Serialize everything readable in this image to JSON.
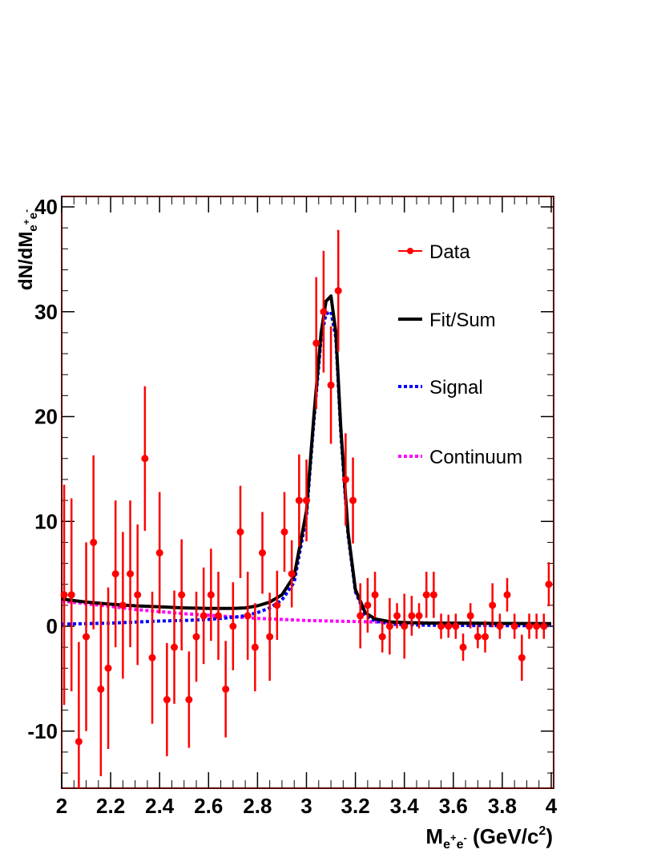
{
  "chart_data": {
    "type": "scatter",
    "xlim": [
      2.0,
      4.0
    ],
    "ylim": [
      -15.5,
      41
    ],
    "x_ticks": [
      2,
      2.2,
      2.4,
      2.6,
      2.8,
      3,
      3.2,
      3.4,
      3.6,
      3.8,
      4
    ],
    "x_tick_labels": [
      "2",
      "2.2",
      "2.4",
      "2.6",
      "2.8",
      "3",
      "3.2",
      "3.4",
      "3.6",
      "3.8",
      "4"
    ],
    "y_ticks": [
      -10,
      0,
      10,
      20,
      30,
      40
    ],
    "y_tick_labels": [
      "-10",
      "0",
      "10",
      "20",
      "30",
      "40"
    ],
    "xlabel": {
      "main": "M",
      "sub_e1": "e",
      "sup_plus": "+",
      "sub_e2": "e",
      "sup_minus": "-",
      "unit_open": " (GeV/c",
      "unit_sup": "2",
      "unit_close": ")"
    },
    "ylabel": {
      "main": "dN/dM",
      "sub_e1": "e",
      "sup_plus": "+",
      "sub_e2": "e",
      "sup_minus": "-"
    },
    "legend_position": "top-right",
    "legend": [
      {
        "label": "Data",
        "style": "marker",
        "color": "#ff0000"
      },
      {
        "label": "Fit/Sum",
        "style": "solid",
        "color": "#000000"
      },
      {
        "label": "Signal",
        "style": "dotted",
        "color": "#0000ff"
      },
      {
        "label": "Continuum",
        "style": "dotted",
        "color": "#ff00ff"
      }
    ],
    "series": [
      {
        "name": "Data",
        "kind": "points",
        "color": "#ff0000",
        "points": [
          {
            "x": 2.01,
            "y": 3,
            "err": 10.5
          },
          {
            "x": 2.04,
            "y": 3,
            "err": 9.2
          },
          {
            "x": 2.07,
            "y": -11,
            "err": 9.5
          },
          {
            "x": 2.1,
            "y": -1,
            "err": 9
          },
          {
            "x": 2.13,
            "y": 8,
            "err": 8.3
          },
          {
            "x": 2.16,
            "y": -6,
            "err": 8.3
          },
          {
            "x": 2.19,
            "y": -4,
            "err": 7.7
          },
          {
            "x": 2.22,
            "y": 5,
            "err": 7
          },
          {
            "x": 2.25,
            "y": 2,
            "err": 7
          },
          {
            "x": 2.28,
            "y": 5,
            "err": 7
          },
          {
            "x": 2.31,
            "y": 3,
            "err": 6.7
          },
          {
            "x": 2.34,
            "y": 16,
            "err": 6.9
          },
          {
            "x": 2.37,
            "y": -3,
            "err": 6.3
          },
          {
            "x": 2.4,
            "y": 7,
            "err": 5.8
          },
          {
            "x": 2.43,
            "y": -7,
            "err": 5.4
          },
          {
            "x": 2.46,
            "y": -2,
            "err": 5.4
          },
          {
            "x": 2.49,
            "y": 3,
            "err": 5.3
          },
          {
            "x": 2.52,
            "y": -7,
            "err": 4.6
          },
          {
            "x": 2.55,
            "y": -1,
            "err": 4.3
          },
          {
            "x": 2.58,
            "y": 1,
            "err": 4.6
          },
          {
            "x": 2.61,
            "y": 3,
            "err": 4.4
          },
          {
            "x": 2.64,
            "y": 1,
            "err": 4.2
          },
          {
            "x": 2.67,
            "y": -6,
            "err": 4.6
          },
          {
            "x": 2.7,
            "y": 0,
            "err": 4.2
          },
          {
            "x": 2.73,
            "y": 9,
            "err": 4.4
          },
          {
            "x": 2.76,
            "y": 1,
            "err": 4.2
          },
          {
            "x": 2.79,
            "y": -2,
            "err": 4.2
          },
          {
            "x": 2.82,
            "y": 7,
            "err": 3.9
          },
          {
            "x": 2.85,
            "y": -1,
            "err": 4.2
          },
          {
            "x": 2.88,
            "y": 2,
            "err": 3.3
          },
          {
            "x": 2.91,
            "y": 9,
            "err": 3.8
          },
          {
            "x": 2.94,
            "y": 5,
            "err": 3.2
          },
          {
            "x": 2.97,
            "y": 12,
            "err": 4.4
          },
          {
            "x": 3.0,
            "y": 12,
            "err": 3.9
          },
          {
            "x": 3.04,
            "y": 27,
            "err": 6.3
          },
          {
            "x": 3.07,
            "y": 30,
            "err": 5.8
          },
          {
            "x": 3.1,
            "y": 23,
            "err": 5.6
          },
          {
            "x": 3.13,
            "y": 32,
            "err": 5.8
          },
          {
            "x": 3.16,
            "y": 14,
            "err": 4.4
          },
          {
            "x": 3.19,
            "y": 12,
            "err": 4.1
          },
          {
            "x": 3.22,
            "y": 1,
            "err": 3.1
          },
          {
            "x": 3.25,
            "y": 2,
            "err": 2.6
          },
          {
            "x": 3.28,
            "y": 3,
            "err": 2.2
          },
          {
            "x": 3.31,
            "y": -1,
            "err": 1.5
          },
          {
            "x": 3.34,
            "y": 0,
            "err": 2.7
          },
          {
            "x": 3.37,
            "y": 1,
            "err": 1.2
          },
          {
            "x": 3.4,
            "y": 0,
            "err": 3.1
          },
          {
            "x": 3.43,
            "y": 1,
            "err": 1.9
          },
          {
            "x": 3.46,
            "y": 1,
            "err": 1.2
          },
          {
            "x": 3.49,
            "y": 3,
            "err": 2.2
          },
          {
            "x": 3.52,
            "y": 3,
            "err": 2.2
          },
          {
            "x": 3.55,
            "y": 0,
            "err": 1.2
          },
          {
            "x": 3.58,
            "y": 0,
            "err": 1.1
          },
          {
            "x": 3.61,
            "y": 0,
            "err": 1.2
          },
          {
            "x": 3.64,
            "y": -2,
            "err": 1.3
          },
          {
            "x": 3.67,
            "y": 1,
            "err": 1.2
          },
          {
            "x": 3.7,
            "y": -1,
            "err": 1.1
          },
          {
            "x": 3.73,
            "y": -1,
            "err": 1.5
          },
          {
            "x": 3.76,
            "y": 2,
            "err": 2.1
          },
          {
            "x": 3.79,
            "y": 0,
            "err": 1.2
          },
          {
            "x": 3.82,
            "y": 3,
            "err": 1.6
          },
          {
            "x": 3.85,
            "y": 0,
            "err": 1.2
          },
          {
            "x": 3.88,
            "y": -3,
            "err": 2.2
          },
          {
            "x": 3.91,
            "y": 0,
            "err": 1.2
          },
          {
            "x": 3.94,
            "y": 0,
            "err": 1.2
          },
          {
            "x": 3.97,
            "y": 0,
            "err": 1.2
          },
          {
            "x": 3.99,
            "y": 4,
            "err": 2.1
          }
        ]
      },
      {
        "name": "Fit/Sum",
        "kind": "line",
        "color": "#000000",
        "x": [
          2.0,
          2.05,
          2.1,
          2.2,
          2.3,
          2.4,
          2.5,
          2.6,
          2.7,
          2.75,
          2.8,
          2.85,
          2.9,
          2.95,
          3.0,
          3.03,
          3.06,
          3.08,
          3.1,
          3.12,
          3.14,
          3.17,
          3.2,
          3.24,
          3.28,
          3.35,
          3.4,
          3.5,
          3.6,
          3.7,
          3.8,
          3.9,
          4.0
        ],
        "y": [
          2.6,
          2.45,
          2.3,
          2.1,
          1.95,
          1.85,
          1.75,
          1.7,
          1.7,
          1.75,
          1.95,
          2.3,
          3.0,
          4.8,
          11.0,
          20.0,
          28.0,
          31.0,
          31.5,
          28.0,
          19.0,
          9.0,
          3.5,
          1.3,
          0.7,
          0.4,
          0.35,
          0.3,
          0.3,
          0.28,
          0.27,
          0.26,
          0.25
        ]
      },
      {
        "name": "Signal",
        "kind": "line",
        "color": "#0000ff",
        "x": [
          2.0,
          2.1,
          2.2,
          2.3,
          2.4,
          2.5,
          2.6,
          2.7,
          2.75,
          2.8,
          2.85,
          2.9,
          2.95,
          3.0,
          3.03,
          3.06,
          3.08,
          3.1,
          3.12,
          3.14,
          3.17,
          3.2,
          3.24,
          3.28,
          3.35,
          3.4,
          3.5,
          3.6,
          3.7,
          3.8,
          3.9,
          4.0
        ],
        "y": [
          0.2,
          0.25,
          0.3,
          0.4,
          0.5,
          0.55,
          0.65,
          0.85,
          1.0,
          1.3,
          1.75,
          2.5,
          4.2,
          10.5,
          19.5,
          27.5,
          29.8,
          30.0,
          27.5,
          18.5,
          8.7,
          3.3,
          1.1,
          0.5,
          0.2,
          0.15,
          0.1,
          0.08,
          0.07,
          0.06,
          0.05,
          0.05
        ]
      },
      {
        "name": "Continuum",
        "kind": "line",
        "color": "#ff00ff",
        "x": [
          2.0,
          2.1,
          2.2,
          2.3,
          2.4,
          2.5,
          2.6,
          2.7,
          2.8,
          2.9,
          3.0,
          3.1,
          3.2,
          3.3,
          3.4,
          3.5,
          3.6,
          3.7,
          3.8,
          3.9,
          4.0
        ],
        "y": [
          2.4,
          2.15,
          1.9,
          1.6,
          1.4,
          1.2,
          1.05,
          0.9,
          0.75,
          0.65,
          0.55,
          0.5,
          0.45,
          0.4,
          0.35,
          0.32,
          0.3,
          0.28,
          0.26,
          0.25,
          0.24
        ]
      }
    ]
  }
}
